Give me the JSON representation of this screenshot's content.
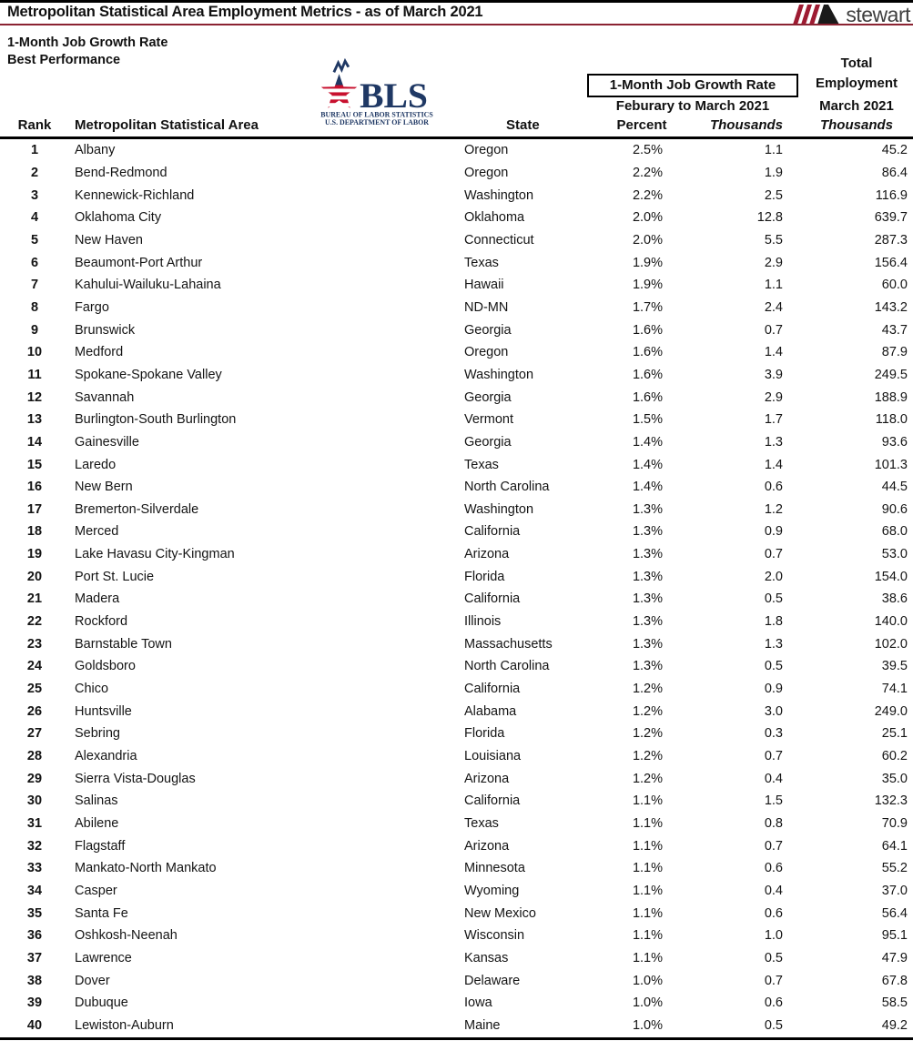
{
  "header": {
    "title": "Metropolitan Statistical Area Employment Metrics - as of March 2021",
    "brand": "stewart",
    "subtitle_line1": "1-Month Job Growth Rate",
    "subtitle_line2": "Best Performance",
    "accent_color": "#8b2332"
  },
  "bls_logo": {
    "acronym": "BLS",
    "line1": "BUREAU OF LABOR STATISTICS",
    "line2": "U.S. DEPARTMENT OF LABOR",
    "navy": "#1f3864",
    "red": "#c8102e"
  },
  "columns": {
    "rank": "Rank",
    "msa": "Metropolitan Statistical Area",
    "state": "State",
    "growth_group": "1-Month Job Growth Rate",
    "growth_period": "Feburary to March 2021",
    "percent": "Percent",
    "growth_unit": "Thousands",
    "total_line1": "Total",
    "total_line2": "Employment",
    "total_period": "March 2021",
    "total_unit": "Thousands"
  },
  "rows": [
    [
      "1",
      "Albany",
      "Oregon",
      "2.5%",
      "1.1",
      "45.2"
    ],
    [
      "2",
      "Bend-Redmond",
      "Oregon",
      "2.2%",
      "1.9",
      "86.4"
    ],
    [
      "3",
      "Kennewick-Richland",
      "Washington",
      "2.2%",
      "2.5",
      "116.9"
    ],
    [
      "4",
      "Oklahoma City",
      "Oklahoma",
      "2.0%",
      "12.8",
      "639.7"
    ],
    [
      "5",
      "New Haven",
      "Connecticut",
      "2.0%",
      "5.5",
      "287.3"
    ],
    [
      "6",
      "Beaumont-Port Arthur",
      "Texas",
      "1.9%",
      "2.9",
      "156.4"
    ],
    [
      "7",
      "Kahului-Wailuku-Lahaina",
      "Hawaii",
      "1.9%",
      "1.1",
      "60.0"
    ],
    [
      "8",
      "Fargo",
      "ND-MN",
      "1.7%",
      "2.4",
      "143.2"
    ],
    [
      "9",
      "Brunswick",
      "Georgia",
      "1.6%",
      "0.7",
      "43.7"
    ],
    [
      "10",
      "Medford",
      "Oregon",
      "1.6%",
      "1.4",
      "87.9"
    ],
    [
      "11",
      "Spokane-Spokane Valley",
      "Washington",
      "1.6%",
      "3.9",
      "249.5"
    ],
    [
      "12",
      "Savannah",
      "Georgia",
      "1.6%",
      "2.9",
      "188.9"
    ],
    [
      "13",
      "Burlington-South Burlington",
      "Vermont",
      "1.5%",
      "1.7",
      "118.0"
    ],
    [
      "14",
      "Gainesville",
      "Georgia",
      "1.4%",
      "1.3",
      "93.6"
    ],
    [
      "15",
      "Laredo",
      "Texas",
      "1.4%",
      "1.4",
      "101.3"
    ],
    [
      "16",
      "New Bern",
      "North Carolina",
      "1.4%",
      "0.6",
      "44.5"
    ],
    [
      "17",
      "Bremerton-Silverdale",
      "Washington",
      "1.3%",
      "1.2",
      "90.6"
    ],
    [
      "18",
      "Merced",
      "California",
      "1.3%",
      "0.9",
      "68.0"
    ],
    [
      "19",
      "Lake Havasu City-Kingman",
      "Arizona",
      "1.3%",
      "0.7",
      "53.0"
    ],
    [
      "20",
      "Port St. Lucie",
      "Florida",
      "1.3%",
      "2.0",
      "154.0"
    ],
    [
      "21",
      "Madera",
      "California",
      "1.3%",
      "0.5",
      "38.6"
    ],
    [
      "22",
      "Rockford",
      "Illinois",
      "1.3%",
      "1.8",
      "140.0"
    ],
    [
      "23",
      "Barnstable Town",
      "Massachusetts",
      "1.3%",
      "1.3",
      "102.0"
    ],
    [
      "24",
      "Goldsboro",
      "North Carolina",
      "1.3%",
      "0.5",
      "39.5"
    ],
    [
      "25",
      "Chico",
      "California",
      "1.2%",
      "0.9",
      "74.1"
    ],
    [
      "26",
      "Huntsville",
      "Alabama",
      "1.2%",
      "3.0",
      "249.0"
    ],
    [
      "27",
      "Sebring",
      "Florida",
      "1.2%",
      "0.3",
      "25.1"
    ],
    [
      "28",
      "Alexandria",
      "Louisiana",
      "1.2%",
      "0.7",
      "60.2"
    ],
    [
      "29",
      "Sierra Vista-Douglas",
      "Arizona",
      "1.2%",
      "0.4",
      "35.0"
    ],
    [
      "30",
      "Salinas",
      "California",
      "1.1%",
      "1.5",
      "132.3"
    ],
    [
      "31",
      "Abilene",
      "Texas",
      "1.1%",
      "0.8",
      "70.9"
    ],
    [
      "32",
      "Flagstaff",
      "Arizona",
      "1.1%",
      "0.7",
      "64.1"
    ],
    [
      "33",
      "Mankato-North Mankato",
      "Minnesota",
      "1.1%",
      "0.6",
      "55.2"
    ],
    [
      "34",
      "Casper",
      "Wyoming",
      "1.1%",
      "0.4",
      "37.0"
    ],
    [
      "35",
      "Santa Fe",
      "New Mexico",
      "1.1%",
      "0.6",
      "56.4"
    ],
    [
      "36",
      "Oshkosh-Neenah",
      "Wisconsin",
      "1.1%",
      "1.0",
      "95.1"
    ],
    [
      "37",
      "Lawrence",
      "Kansas",
      "1.1%",
      "0.5",
      "47.9"
    ],
    [
      "38",
      "Dover",
      "Delaware",
      "1.0%",
      "0.7",
      "67.8"
    ],
    [
      "39",
      "Dubuque",
      "Iowa",
      "1.0%",
      "0.6",
      "58.5"
    ],
    [
      "40",
      "Lewiston-Auburn",
      "Maine",
      "1.0%",
      "0.5",
      "49.2"
    ]
  ]
}
